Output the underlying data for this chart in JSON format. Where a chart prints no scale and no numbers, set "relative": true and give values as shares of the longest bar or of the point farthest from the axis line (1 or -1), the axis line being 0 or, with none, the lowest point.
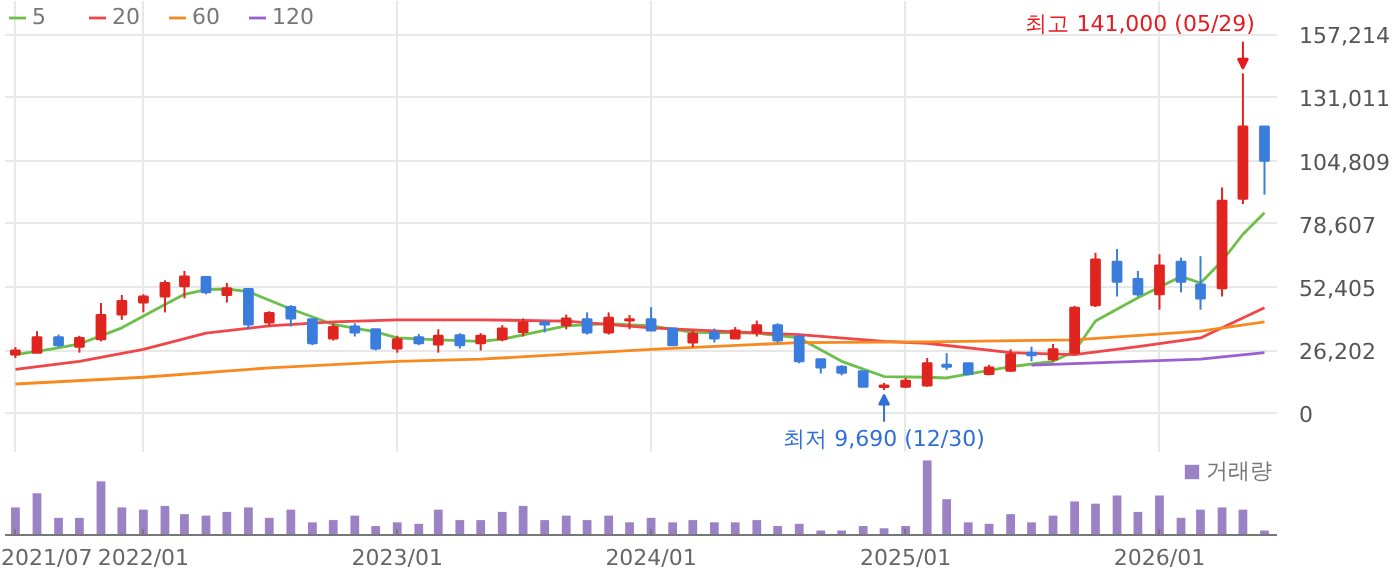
{
  "chart_data": [
    {
      "type": "candlestick",
      "x": [
        "2021-07",
        "2021-08",
        "2021-09",
        "2021-10",
        "2021-11",
        "2021-12",
        "2022-01",
        "2022-02",
        "2022-03",
        "2022-04",
        "2022-05",
        "2022-06",
        "2022-07",
        "2022-08",
        "2022-09",
        "2022-10",
        "2022-11",
        "2022-12",
        "2023-01",
        "2023-02",
        "2023-03",
        "2023-04",
        "2023-05",
        "2023-06",
        "2023-07",
        "2023-08",
        "2023-09",
        "2023-10",
        "2023-11",
        "2023-12",
        "2024-01",
        "2024-02",
        "2024-03",
        "2024-04",
        "2024-05",
        "2024-06",
        "2024-07",
        "2024-08",
        "2024-09",
        "2024-10",
        "2024-11",
        "2024-12",
        "2025-01",
        "2025-02",
        "2025-03",
        "2025-04",
        "2025-05",
        "2025-06",
        "2025-07",
        "2025-08",
        "2025-09",
        "2025-10",
        "2025-11",
        "2025-12",
        "2026-01",
        "2026-02",
        "2026-03",
        "2026-04",
        "2026-05",
        "2026-06"
      ],
      "ohlc": [
        [
          24400,
          27500,
          23000,
          26100
        ],
        [
          25200,
          34100,
          25200,
          31600
        ],
        [
          31600,
          32700,
          27500,
          28300
        ],
        [
          27700,
          32200,
          25200,
          31300
        ],
        [
          30800,
          45800,
          29900,
          40800
        ],
        [
          41000,
          49100,
          38800,
          46600
        ],
        [
          46000,
          49400,
          41900,
          48500
        ],
        [
          48500,
          55200,
          41900,
          54100
        ],
        [
          52700,
          59100,
          47700,
          56800
        ],
        [
          56600,
          56600,
          49400,
          50200
        ],
        [
          49100,
          54100,
          46000,
          51900
        ],
        [
          51600,
          51600,
          34900,
          36900
        ],
        [
          37700,
          42400,
          36000,
          41600
        ],
        [
          44100,
          44900,
          36000,
          39400
        ],
        [
          39100,
          39100,
          28300,
          29100
        ],
        [
          31100,
          37200,
          30200,
          35800
        ],
        [
          36000,
          37400,
          31900,
          33600
        ],
        [
          34900,
          34900,
          26100,
          26900
        ],
        [
          26900,
          32200,
          25200,
          30800
        ],
        [
          31600,
          33000,
          28300,
          29100
        ],
        [
          28600,
          34900,
          25200,
          32200
        ],
        [
          32400,
          33300,
          26900,
          28300
        ],
        [
          29100,
          33300,
          26100,
          32200
        ],
        [
          30800,
          36600,
          29900,
          35200
        ],
        [
          33800,
          39400,
          31900,
          37700
        ],
        [
          37700,
          38500,
          33600,
          36900
        ],
        [
          36600,
          41000,
          34900,
          39400
        ],
        [
          39100,
          41900,
          32700,
          33600
        ],
        [
          33600,
          41900,
          32700,
          39700
        ],
        [
          38500,
          40800,
          34900,
          39100
        ],
        [
          39100,
          44100,
          34400,
          34400
        ],
        [
          35200,
          35200,
          28300,
          28300
        ],
        [
          29400,
          34400,
          27500,
          33000
        ],
        [
          33600,
          35200,
          29400,
          31100
        ],
        [
          31100,
          35800,
          31100,
          34400
        ],
        [
          33600,
          38500,
          31900,
          36600
        ],
        [
          36600,
          37400,
          29400,
          30200
        ],
        [
          31900,
          31900,
          20800,
          21600
        ],
        [
          22500,
          22500,
          16600,
          19100
        ],
        [
          19400,
          20000,
          15800,
          16900
        ],
        [
          17500,
          17500,
          11100,
          11100
        ],
        [
          11000,
          12700,
          9690,
          11600
        ],
        [
          11100,
          14700,
          10500,
          13600
        ],
        [
          11600,
          23000,
          11100,
          20800
        ],
        [
          20200,
          25000,
          18000,
          19400
        ],
        [
          20800,
          20800,
          15800,
          16400
        ],
        [
          16400,
          20200,
          15800,
          19100
        ],
        [
          17700,
          26600,
          17200,
          24400
        ],
        [
          25200,
          27700,
          21600,
          24100
        ],
        [
          22500,
          28800,
          21600,
          26600
        ],
        [
          25200,
          44600,
          24400,
          43800
        ],
        [
          44900,
          66600,
          44100,
          63800
        ],
        [
          62900,
          68200,
          48500,
          54600
        ],
        [
          55700,
          59100,
          48500,
          49400
        ],
        [
          49400,
          66000,
          43000,
          61300
        ],
        [
          62900,
          64600,
          50200,
          54600
        ],
        [
          53500,
          65200,
          43000,
          47700
        ],
        [
          51900,
          93700,
          48500,
          88200
        ],
        [
          89000,
          141000,
          86800,
          119000
        ],
        [
          119000,
          119000,
          90700,
          104800
        ]
      ],
      "colors": [
        "#e0241f",
        "#e0241f",
        "#3b7ddd",
        "#e0241f",
        "#e0241f",
        "#e0241f",
        "#e0241f",
        "#e0241f",
        "#e0241f",
        "#3b7ddd",
        "#e0241f",
        "#3b7ddd",
        "#e0241f",
        "#3b7ddd",
        "#3b7ddd",
        "#e0241f",
        "#3b7ddd",
        "#3b7ddd",
        "#e0241f",
        "#3b7ddd",
        "#e0241f",
        "#3b7ddd",
        "#e0241f",
        "#e0241f",
        "#e0241f",
        "#3b7ddd",
        "#e0241f",
        "#3b7ddd",
        "#e0241f",
        "#e0241f",
        "#3b7ddd",
        "#3b7ddd",
        "#e0241f",
        "#3b7ddd",
        "#e0241f",
        "#e0241f",
        "#3b7ddd",
        "#3b7ddd",
        "#3b7ddd",
        "#3b7ddd",
        "#3b7ddd",
        "#e0241f",
        "#e0241f",
        "#e0241f",
        "#3b7ddd",
        "#3b7ddd",
        "#e0241f",
        "#e0241f",
        "#3b7ddd",
        "#e0241f",
        "#e0241f",
        "#e0241f",
        "#3b7ddd",
        "#3b7ddd",
        "#e0241f",
        "#3b7ddd",
        "#3b7ddd",
        "#e0241f",
        "#e0241f",
        "#3b7ddd"
      ],
      "series": [
        {
          "name": "5",
          "type": "line",
          "color": "#6cc04a",
          "x": [
            "2021-07",
            "2021-09",
            "2021-10",
            "2021-12",
            "2022-02",
            "2022-03",
            "2022-04",
            "2022-05",
            "2022-06",
            "2022-08",
            "2022-10",
            "2022-12",
            "2023-01",
            "2023-03",
            "2023-05",
            "2023-06",
            "2023-09",
            "2023-11",
            "2024-01",
            "2024-03",
            "2024-06",
            "2024-08",
            "2024-10",
            "2024-12",
            "2025-02",
            "2025-03",
            "2025-06",
            "2025-08",
            "2025-09",
            "2025-10",
            "2025-12",
            "2026-02",
            "2026-03",
            "2026-04",
            "2026-05",
            "2026-06"
          ],
          "values": [
            24400,
            27200,
            28800,
            35500,
            45200,
            49400,
            51300,
            51600,
            50500,
            43300,
            36900,
            33800,
            31300,
            30500,
            29900,
            30800,
            36300,
            37200,
            36300,
            33600,
            33300,
            31300,
            21600,
            15300,
            15000,
            14700,
            19400,
            21600,
            25800,
            38300,
            48000,
            56800,
            54100,
            63200,
            74300,
            83200
          ]
        },
        {
          "name": "20",
          "type": "line",
          "color": "#f0464a",
          "x": [
            "2021-07",
            "2021-10",
            "2022-01",
            "2022-04",
            "2022-07",
            "2022-10",
            "2023-01",
            "2023-05",
            "2023-09",
            "2024-01",
            "2024-05",
            "2024-08",
            "2024-12",
            "2025-02",
            "2025-06",
            "2025-09",
            "2025-12",
            "2026-03",
            "2026-04",
            "2026-06"
          ],
          "values": [
            18300,
            21600,
            26600,
            33300,
            36300,
            38000,
            38800,
            38800,
            38300,
            35500,
            33800,
            32700,
            29900,
            29100,
            25200,
            24400,
            27700,
            31300,
            35500,
            43800
          ]
        },
        {
          "name": "60",
          "type": "line",
          "color": "#f7891e",
          "x": [
            "2021-07",
            "2022-01",
            "2022-07",
            "2023-01",
            "2023-05",
            "2024-01",
            "2024-08",
            "2025-02",
            "2025-09",
            "2026-03",
            "2026-06"
          ],
          "values": [
            12200,
            15000,
            18900,
            21600,
            22500,
            26600,
            29400,
            29700,
            30500,
            34100,
            38000
          ]
        },
        {
          "name": "120",
          "type": "line",
          "color": "#9a5fd0",
          "x": [
            "2025-07",
            "2026-03",
            "2026-06"
          ],
          "values": [
            20000,
            22500,
            25200
          ]
        }
      ],
      "xlim": [
        "2021-06-16",
        "2026-06-19"
      ],
      "xticks": [
        {
          "value": "2021-07",
          "label": null
        },
        {
          "value": "2022-01",
          "label": null
        },
        {
          "value": "2023-01",
          "label": null
        },
        {
          "value": "2024-01",
          "label": null
        },
        {
          "value": "2025-01",
          "label": null
        },
        {
          "value": "2026-01",
          "label": null
        }
      ],
      "ylim": [
        -16400,
        171000
      ],
      "yticks": [
        0,
        {
          "value": 26202,
          "label": "26,202"
        },
        {
          "value": 52405,
          "label": "52,405"
        },
        {
          "value": 78607,
          "label": "78,607"
        },
        {
          "value": 104809,
          "label": "104,809"
        },
        {
          "value": 131011,
          "label": "131,011"
        },
        {
          "value": 157214,
          "label": "157,214"
        }
      ],
      "annotations": [
        {
          "text": "최고 141,000 (05/29)",
          "x": "2026-05",
          "y": 141000
        },
        {
          "text": "최저 9,690 (12/30)",
          "x": "2024-12",
          "y": 9690
        }
      ],
      "grid": true,
      "legend": "top left",
      "tick_labels": "y"
    },
    {
      "type": "bar",
      "relative": true,
      "x": [
        "2021-07",
        "2021-08",
        "2021-09",
        "2021-10",
        "2021-11",
        "2021-12",
        "2022-01",
        "2022-02",
        "2022-03",
        "2022-04",
        "2022-05",
        "2022-06",
        "2022-07",
        "2022-08",
        "2022-09",
        "2022-10",
        "2022-11",
        "2022-12",
        "2023-01",
        "2023-02",
        "2023-03",
        "2023-04",
        "2023-05",
        "2023-06",
        "2023-07",
        "2023-08",
        "2023-09",
        "2023-10",
        "2023-11",
        "2023-12",
        "2024-01",
        "2024-02",
        "2024-03",
        "2024-04",
        "2024-05",
        "2024-06",
        "2024-07",
        "2024-08",
        "2024-09",
        "2024-10",
        "2024-11",
        "2024-12",
        "2025-01",
        "2025-02",
        "2025-03",
        "2025-04",
        "2025-05",
        "2025-06",
        "2025-07",
        "2025-08",
        "2025-09",
        "2025-10",
        "2025-11",
        "2025-12",
        "2026-01",
        "2026-02",
        "2026-03",
        "2026-04",
        "2026-05",
        "2026-06"
      ],
      "series": [
        {
          "name": "거래량",
          "color": "#9b82c4",
          "values": [
            0.37,
            0.56,
            0.23,
            0.23,
            0.72,
            0.37,
            0.34,
            0.39,
            0.28,
            0.26,
            0.31,
            0.37,
            0.23,
            0.34,
            0.17,
            0.2,
            0.26,
            0.12,
            0.17,
            0.15,
            0.34,
            0.2,
            0.2,
            0.31,
            0.39,
            0.2,
            0.26,
            0.2,
            0.26,
            0.17,
            0.23,
            0.17,
            0.2,
            0.17,
            0.17,
            0.2,
            0.12,
            0.15,
            0.06,
            0.06,
            0.12,
            0.09,
            0.12,
            1,
            0.48,
            0.17,
            0.15,
            0.28,
            0.17,
            0.26,
            0.45,
            0.42,
            0.53,
            0.31,
            0.53,
            0.23,
            0.34,
            0.37,
            0.34,
            0.06
          ]
        }
      ],
      "xlim": [
        "2021-06-16",
        "2026-06-19"
      ],
      "xticks": [
        {
          "value": "2021-07",
          "label": "2021/07"
        },
        {
          "value": "2022-01",
          "label": "2022/01"
        },
        {
          "value": "2023-01",
          "label": "2023/01"
        },
        {
          "value": "2024-01",
          "label": "2024/01"
        },
        {
          "value": "2025-01",
          "label": "2025/01"
        },
        {
          "value": "2026-01",
          "label": "2026/01"
        }
      ],
      "legend": "top right",
      "tick_labels": "x"
    }
  ]
}
